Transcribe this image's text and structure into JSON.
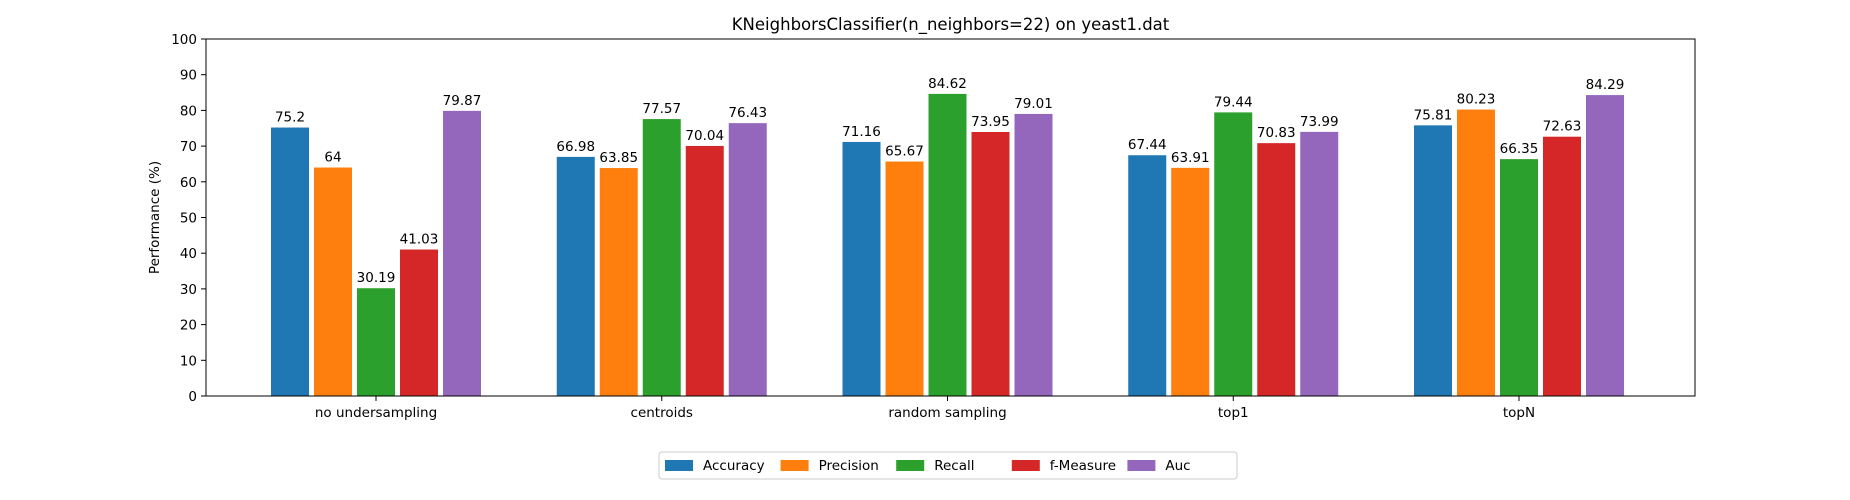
{
  "chart_data": {
    "type": "bar",
    "title": "KNeighborsClassifier(n_neighbors=22) on yeast1.dat",
    "xlabel": "",
    "ylabel": "Performance (%)",
    "ylim": [
      0,
      100
    ],
    "yticks": [
      0,
      10,
      20,
      30,
      40,
      50,
      60,
      70,
      80,
      90,
      100
    ],
    "grid": false,
    "legend_position": "bottom-center",
    "categories": [
      "no undersampling",
      "centroids",
      "random sampling",
      "top1",
      "topN"
    ],
    "series": [
      {
        "name": "Accuracy",
        "color": "#1f77b4",
        "values": [
          75.2,
          66.98,
          71.16,
          67.44,
          75.81
        ],
        "labels": [
          "75.2",
          "66.98",
          "71.16",
          "67.44",
          "75.81"
        ]
      },
      {
        "name": "Precision",
        "color": "#ff7f0e",
        "values": [
          64,
          63.85,
          65.67,
          63.91,
          80.23
        ],
        "labels": [
          "64",
          "63.85",
          "65.67",
          "63.91",
          "80.23"
        ]
      },
      {
        "name": "Recall",
        "color": "#2ca02c",
        "values": [
          30.19,
          77.57,
          84.62,
          79.44,
          66.35
        ],
        "labels": [
          "30.19",
          "77.57",
          "84.62",
          "79.44",
          "66.35"
        ]
      },
      {
        "name": "f-Measure",
        "color": "#d62728",
        "values": [
          41.03,
          70.04,
          73.95,
          70.83,
          72.63
        ],
        "labels": [
          "41.03",
          "70.04",
          "73.95",
          "70.83",
          "72.63"
        ]
      },
      {
        "name": "Auc",
        "color": "#9467bd",
        "values": [
          79.87,
          76.43,
          79.01,
          73.99,
          84.29
        ],
        "labels": [
          "79.87",
          "76.43",
          "79.01",
          "73.99",
          "84.29"
        ]
      }
    ]
  }
}
